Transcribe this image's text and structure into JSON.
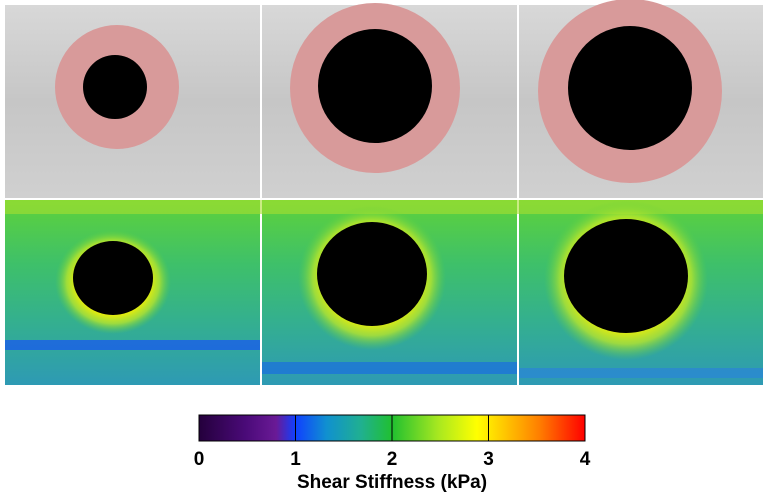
{
  "colorbar": {
    "label": "Shear Stiffness (kPa)",
    "ticks": [
      0,
      1,
      2,
      3,
      4
    ]
  }
}
